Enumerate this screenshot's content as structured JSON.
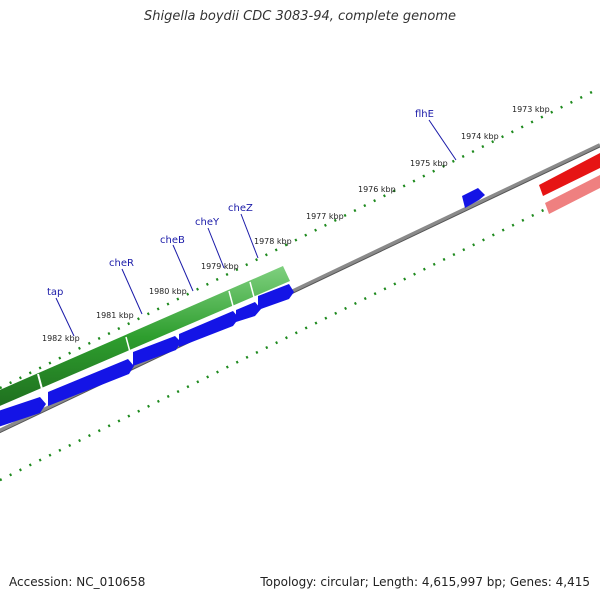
{
  "title": "Shigella boydii CDC 3083-94, complete genome",
  "footer": {
    "accession": "Accession: NC_010658",
    "summary": "Topology: circular; Length: 4,615,997 bp; Genes: 4,415"
  },
  "colors": {
    "backbone": "#7a7a7a",
    "tick": "#1e8a1e",
    "forward_track": "#2e9e2e",
    "cds": "#1414e6",
    "rrna": "#e61414",
    "rrna_light": "#ef8080",
    "gene_label": "#1a1aa8"
  },
  "kbp_ticks": [
    {
      "label": "1973 kbp",
      "pos": 0.9
    },
    {
      "label": "1974 kbp",
      "pos": 0.8
    },
    {
      "label": "1975 kbp",
      "pos": 0.7
    },
    {
      "label": "1976 kbp",
      "pos": 0.6
    },
    {
      "label": "1977 kbp",
      "pos": 0.5
    },
    {
      "label": "1978 kbp",
      "pos": 0.4
    },
    {
      "label": "1979 kbp",
      "pos": 0.3
    },
    {
      "label": "1980 kbp",
      "pos": 0.2
    },
    {
      "label": "1981 kbp",
      "pos": 0.1
    },
    {
      "label": "1982 kbp",
      "pos": 0.0
    }
  ],
  "gene_labels": [
    {
      "name": "tap"
    },
    {
      "name": "cheR"
    },
    {
      "name": "cheB"
    },
    {
      "name": "cheY"
    },
    {
      "name": "cheZ"
    },
    {
      "name": "flhE"
    }
  ]
}
